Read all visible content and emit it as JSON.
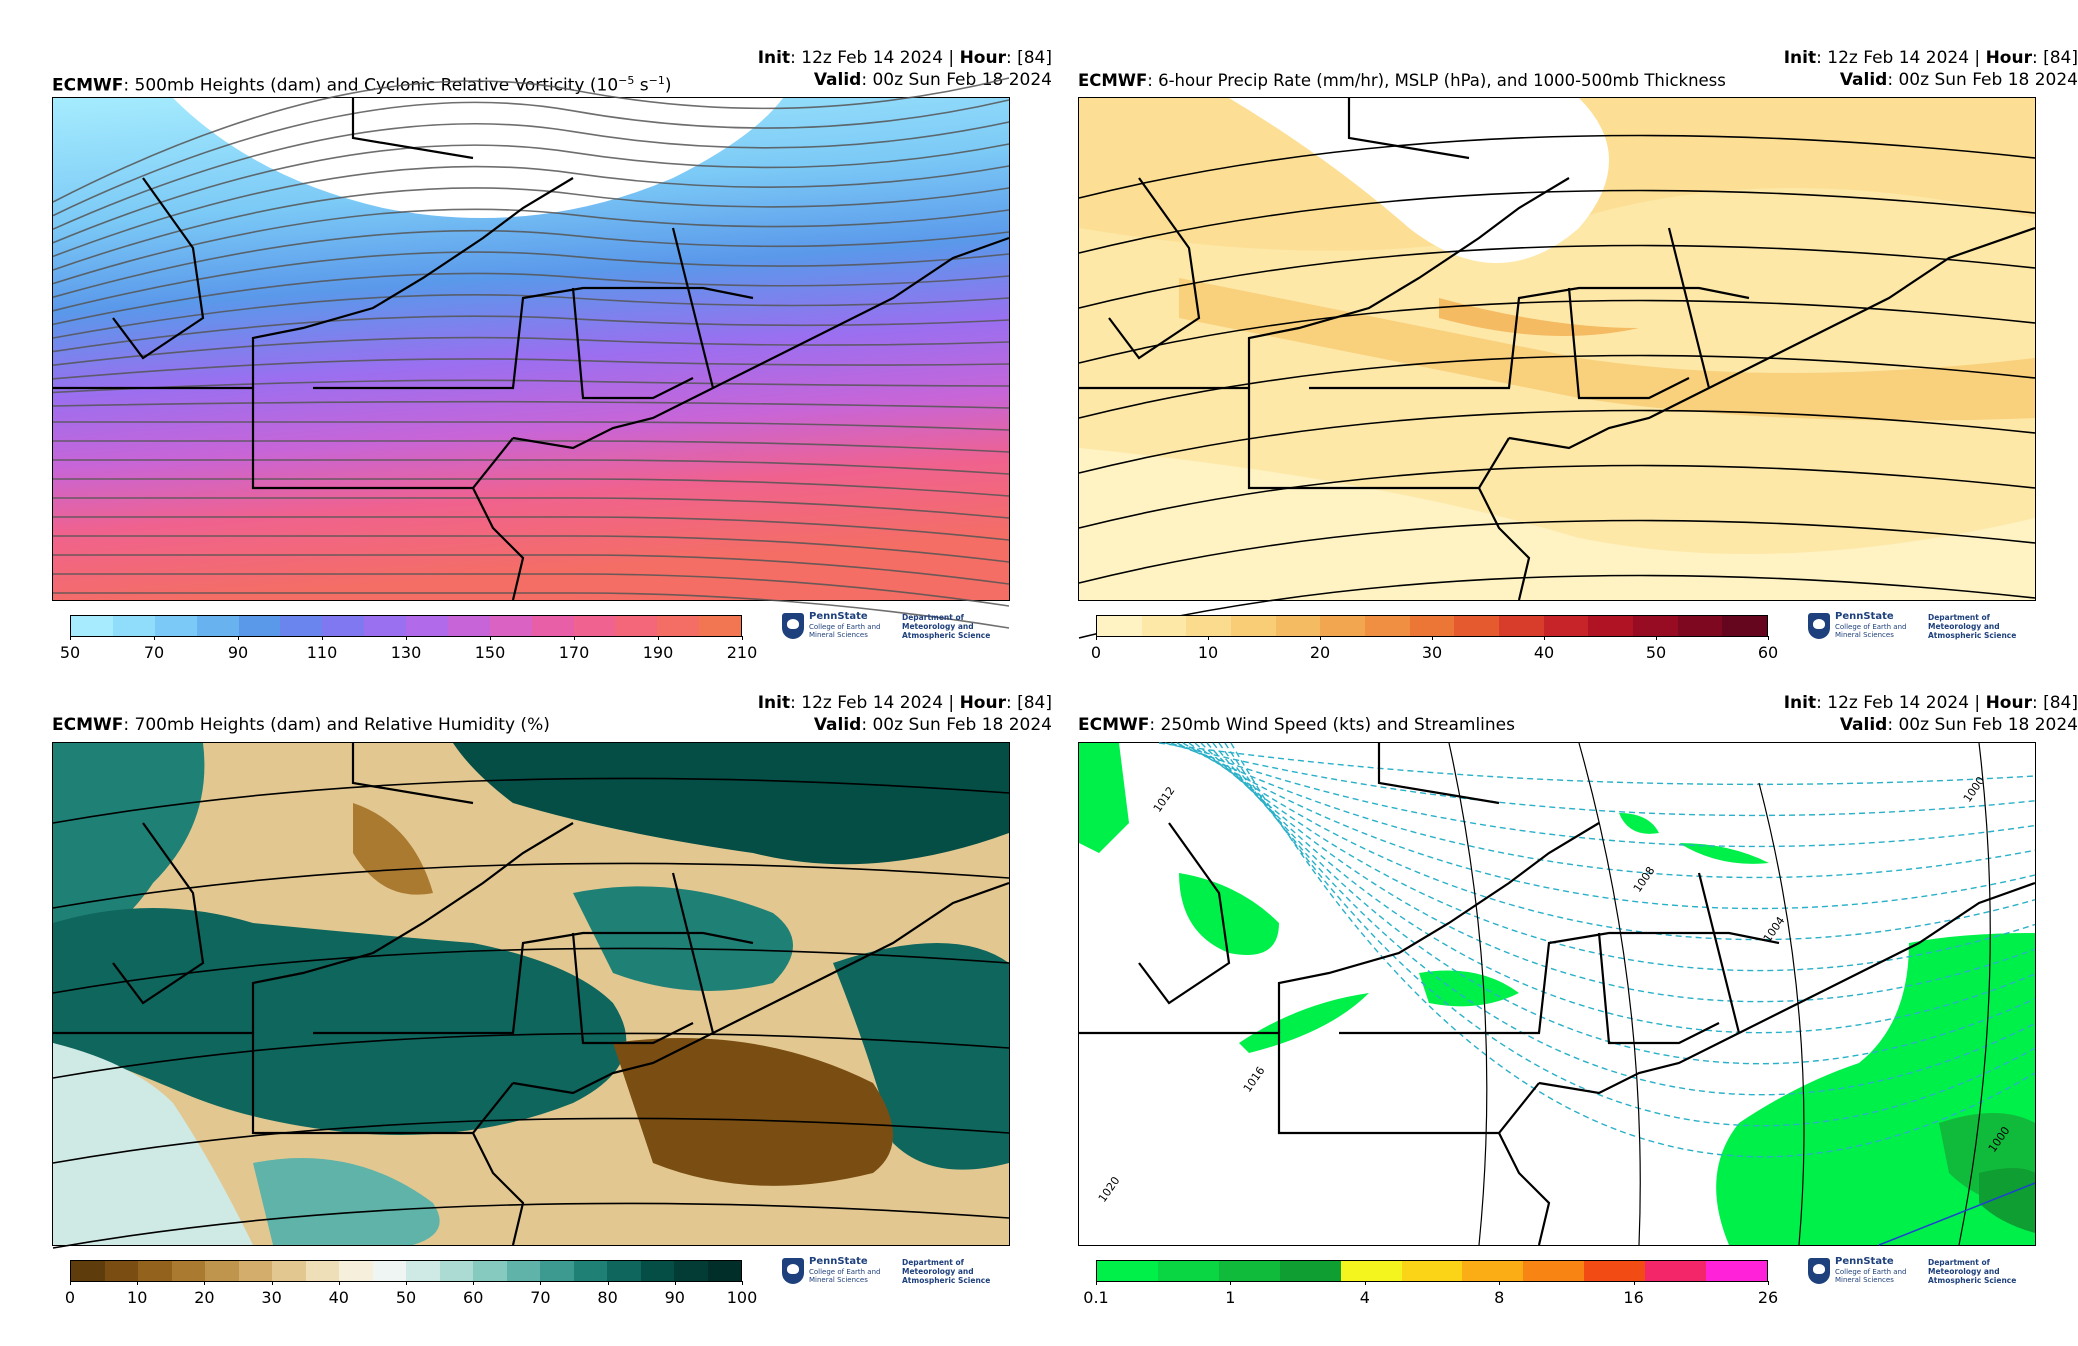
{
  "panels": [
    {
      "id": "vorticity",
      "init_label": "Init",
      "init_value": ": 12z Feb 14 2024 | ",
      "hour_label": "Hour",
      "hour_value": ": [84]",
      "model": "ECMWF",
      "title": ": 500mb Heights (dam) and Cyclonic Relative Vorticity (10",
      "title_sup": "−5",
      "title_tail": " s",
      "title_sup2": "−1",
      "title_end": ")",
      "valid_label": "Valid",
      "valid_value": ": 00z Sun Feb 18 2024",
      "colorbar": {
        "colors": [
          "#a6ecfe",
          "#8fdcfb",
          "#7bc9f6",
          "#68b2f0",
          "#5a98ea",
          "#6a86ee",
          "#8078f0",
          "#9a6ff0",
          "#b16aea",
          "#c765d8",
          "#d962c2",
          "#e85fa8",
          "#f06290",
          "#f4677a",
          "#f46e65",
          "#f27651"
        ],
        "ticks": [
          "50",
          "70",
          "90",
          "110",
          "130",
          "150",
          "170",
          "190",
          "210"
        ]
      }
    },
    {
      "id": "precip",
      "init_label": "Init",
      "init_value": ": 12z Feb 14 2024 | ",
      "hour_label": "Hour",
      "hour_value": ": [84]",
      "model": "ECMWF",
      "title": ": 6-hour Precip Rate (mm/hr), MSLP (hPa), and 1000-500mb Thickness",
      "valid_label": "Valid",
      "valid_value": ": 00z Sun Feb 18 2024",
      "colorbar": {
        "colors": [
          "#fff3c4",
          "#fde8a8",
          "#fbdc8e",
          "#f8cd76",
          "#f5bb62",
          "#f3a650",
          "#f08e42",
          "#ec7636",
          "#e55a2e",
          "#d83c2a",
          "#c62428",
          "#b01424",
          "#970c22",
          "#7e0820",
          "#66061e"
        ],
        "ticks": [
          "0",
          "10",
          "20",
          "30",
          "40",
          "50",
          "60"
        ]
      }
    },
    {
      "id": "humidity",
      "init_label": "Init",
      "init_value": ": 12z Feb 14 2024 | ",
      "hour_label": "Hour",
      "hour_value": ": [84]",
      "model": "ECMWF",
      "title": ": 700mb Heights (dam) and Relative Humidity (%)",
      "valid_label": "Valid",
      "valid_value": ": 00z Sun Feb 18 2024",
      "colorbar": {
        "colors": [
          "#5e3c0c",
          "#7a4e12",
          "#93621c",
          "#aa7a30",
          "#bf944c",
          "#d2ad6c",
          "#e2c791",
          "#efdfb8",
          "#f6efdc",
          "#eef5f3",
          "#cfe9e4",
          "#acdbd3",
          "#86c9bf",
          "#5fb3a8",
          "#3c9a90",
          "#1f8076",
          "#0e665d",
          "#044e46",
          "#023c34",
          "#012e28"
        ],
        "ticks": [
          "0",
          "10",
          "20",
          "30",
          "40",
          "50",
          "60",
          "70",
          "80",
          "90",
          "100"
        ]
      }
    },
    {
      "id": "wind",
      "init_label": "Init",
      "init_value": ": 12z Feb 14 2024 | ",
      "hour_label": "Hour",
      "hour_value": ": [84]",
      "model": "ECMWF",
      "title": ": 250mb Wind Speed (kts) and Streamlines",
      "valid_label": "Valid",
      "valid_value": ": 00z Sun Feb 18 2024",
      "colorbar": {
        "colors": [
          "#00f04a",
          "#0ad643",
          "#10bb3b",
          "#0e9e32",
          "#f4f41e",
          "#fbd418",
          "#fbad16",
          "#f88414",
          "#f24b14",
          "#f3266a",
          "#ff22d8"
        ],
        "ticks": [
          "0.1",
          "1",
          "4",
          "8",
          "16",
          "26"
        ]
      },
      "isobar_labels": [
        "1012",
        "1016",
        "1020",
        "1008",
        "1004",
        "1000",
        "1000"
      ]
    }
  ],
  "logo": {
    "name": "PennState",
    "college": "College of Earth and Mineral Sciences",
    "dept": "Department of Meteorology and Atmospheric Science"
  }
}
